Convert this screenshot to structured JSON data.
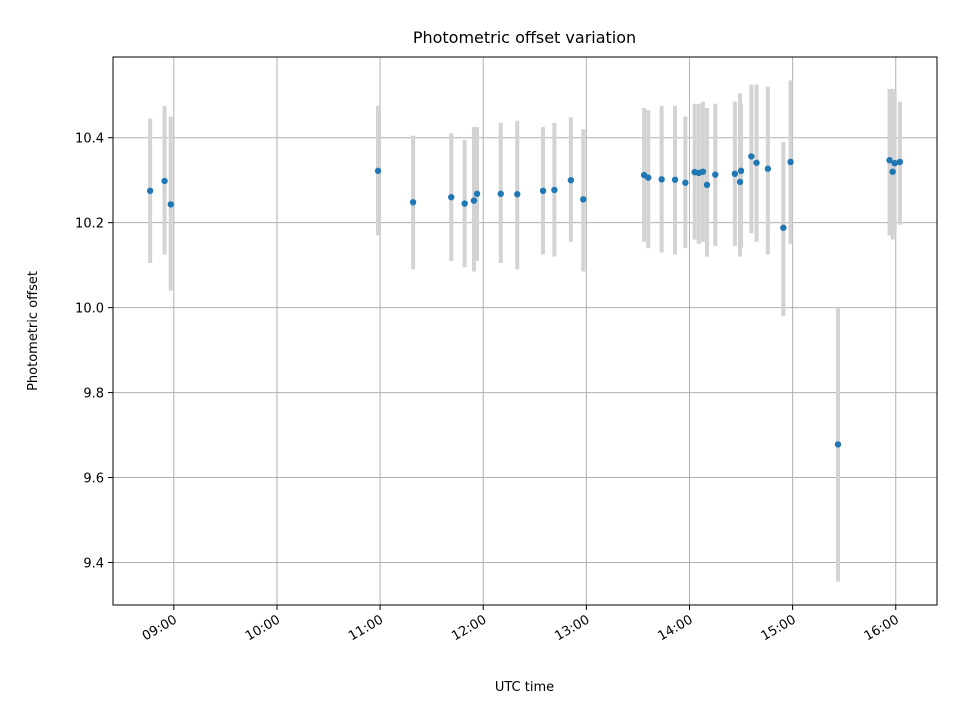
{
  "chart_data": {
    "type": "scatter",
    "title": "Photometric offset variation",
    "xlabel": "UTC time",
    "ylabel": "Photometric offset",
    "x_unit": "hours (UTC)",
    "xlim": [
      8.41,
      16.4
    ],
    "ylim": [
      9.3,
      10.59
    ],
    "x_ticks": [
      {
        "value": 9,
        "label": "09:00"
      },
      {
        "value": 10,
        "label": "10:00"
      },
      {
        "value": 11,
        "label": "11:00"
      },
      {
        "value": 12,
        "label": "12:00"
      },
      {
        "value": 13,
        "label": "13:00"
      },
      {
        "value": 14,
        "label": "14:00"
      },
      {
        "value": 15,
        "label": "15:00"
      },
      {
        "value": 16,
        "label": "16:00"
      }
    ],
    "y_ticks": [
      {
        "value": 9.4,
        "label": "9.4"
      },
      {
        "value": 9.6,
        "label": "9.6"
      },
      {
        "value": 9.8,
        "label": "9.8"
      },
      {
        "value": 10.0,
        "label": "10.0"
      },
      {
        "value": 10.2,
        "label": "10.2"
      },
      {
        "value": 10.4,
        "label": "10.4"
      }
    ],
    "grid": true,
    "colors": {
      "point": "#1f77b4",
      "errorbar": "#d3d3d3",
      "grid": "#b0b0b0"
    },
    "points": [
      {
        "x": 8.77,
        "y": 10.275,
        "lo": 10.105,
        "hi": 10.445
      },
      {
        "x": 8.91,
        "y": 10.298,
        "lo": 10.125,
        "hi": 10.475
      },
      {
        "x": 8.97,
        "y": 10.243,
        "lo": 10.04,
        "hi": 10.45
      },
      {
        "x": 10.98,
        "y": 10.322,
        "lo": 10.17,
        "hi": 10.475
      },
      {
        "x": 11.32,
        "y": 10.248,
        "lo": 10.09,
        "hi": 10.405
      },
      {
        "x": 11.69,
        "y": 10.26,
        "lo": 10.11,
        "hi": 10.41
      },
      {
        "x": 11.82,
        "y": 10.245,
        "lo": 10.095,
        "hi": 10.395
      },
      {
        "x": 11.91,
        "y": 10.252,
        "lo": 10.085,
        "hi": 10.425
      },
      {
        "x": 11.94,
        "y": 10.268,
        "lo": 10.11,
        "hi": 10.425
      },
      {
        "x": 12.17,
        "y": 10.268,
        "lo": 10.105,
        "hi": 10.435
      },
      {
        "x": 12.33,
        "y": 10.267,
        "lo": 10.09,
        "hi": 10.44
      },
      {
        "x": 12.58,
        "y": 10.275,
        "lo": 10.125,
        "hi": 10.425
      },
      {
        "x": 12.69,
        "y": 10.277,
        "lo": 10.12,
        "hi": 10.435
      },
      {
        "x": 12.85,
        "y": 10.3,
        "lo": 10.155,
        "hi": 10.448
      },
      {
        "x": 12.97,
        "y": 10.255,
        "lo": 10.085,
        "hi": 10.42
      },
      {
        "x": 13.56,
        "y": 10.312,
        "lo": 10.155,
        "hi": 10.47
      },
      {
        "x": 13.6,
        "y": 10.306,
        "lo": 10.14,
        "hi": 10.465
      },
      {
        "x": 13.73,
        "y": 10.302,
        "lo": 10.13,
        "hi": 10.475
      },
      {
        "x": 13.86,
        "y": 10.301,
        "lo": 10.125,
        "hi": 10.475
      },
      {
        "x": 13.96,
        "y": 10.294,
        "lo": 10.14,
        "hi": 10.45
      },
      {
        "x": 14.05,
        "y": 10.319,
        "lo": 10.16,
        "hi": 10.48
      },
      {
        "x": 14.09,
        "y": 10.317,
        "lo": 10.15,
        "hi": 10.48
      },
      {
        "x": 14.13,
        "y": 10.32,
        "lo": 10.155,
        "hi": 10.485
      },
      {
        "x": 14.17,
        "y": 10.289,
        "lo": 10.12,
        "hi": 10.47
      },
      {
        "x": 14.25,
        "y": 10.313,
        "lo": 10.145,
        "hi": 10.48
      },
      {
        "x": 14.44,
        "y": 10.315,
        "lo": 10.145,
        "hi": 10.485
      },
      {
        "x": 14.49,
        "y": 10.296,
        "lo": 10.12,
        "hi": 10.505
      },
      {
        "x": 14.5,
        "y": 10.322,
        "lo": 10.14,
        "hi": 10.48
      },
      {
        "x": 14.6,
        "y": 10.356,
        "lo": 10.175,
        "hi": 10.525
      },
      {
        "x": 14.65,
        "y": 10.341,
        "lo": 10.155,
        "hi": 10.525
      },
      {
        "x": 14.76,
        "y": 10.327,
        "lo": 10.125,
        "hi": 10.52
      },
      {
        "x": 14.91,
        "y": 10.188,
        "lo": 9.98,
        "hi": 10.39
      },
      {
        "x": 14.98,
        "y": 10.343,
        "lo": 10.15,
        "hi": 10.535
      },
      {
        "x": 15.44,
        "y": 9.678,
        "lo": 9.355,
        "hi": 10.0
      },
      {
        "x": 15.94,
        "y": 10.347,
        "lo": 10.17,
        "hi": 10.515
      },
      {
        "x": 15.97,
        "y": 10.32,
        "lo": 10.16,
        "hi": 10.515
      },
      {
        "x": 15.99,
        "y": 10.34,
        "lo": 10.175,
        "hi": 10.505
      },
      {
        "x": 16.04,
        "y": 10.343,
        "lo": 10.195,
        "hi": 10.485
      }
    ]
  }
}
